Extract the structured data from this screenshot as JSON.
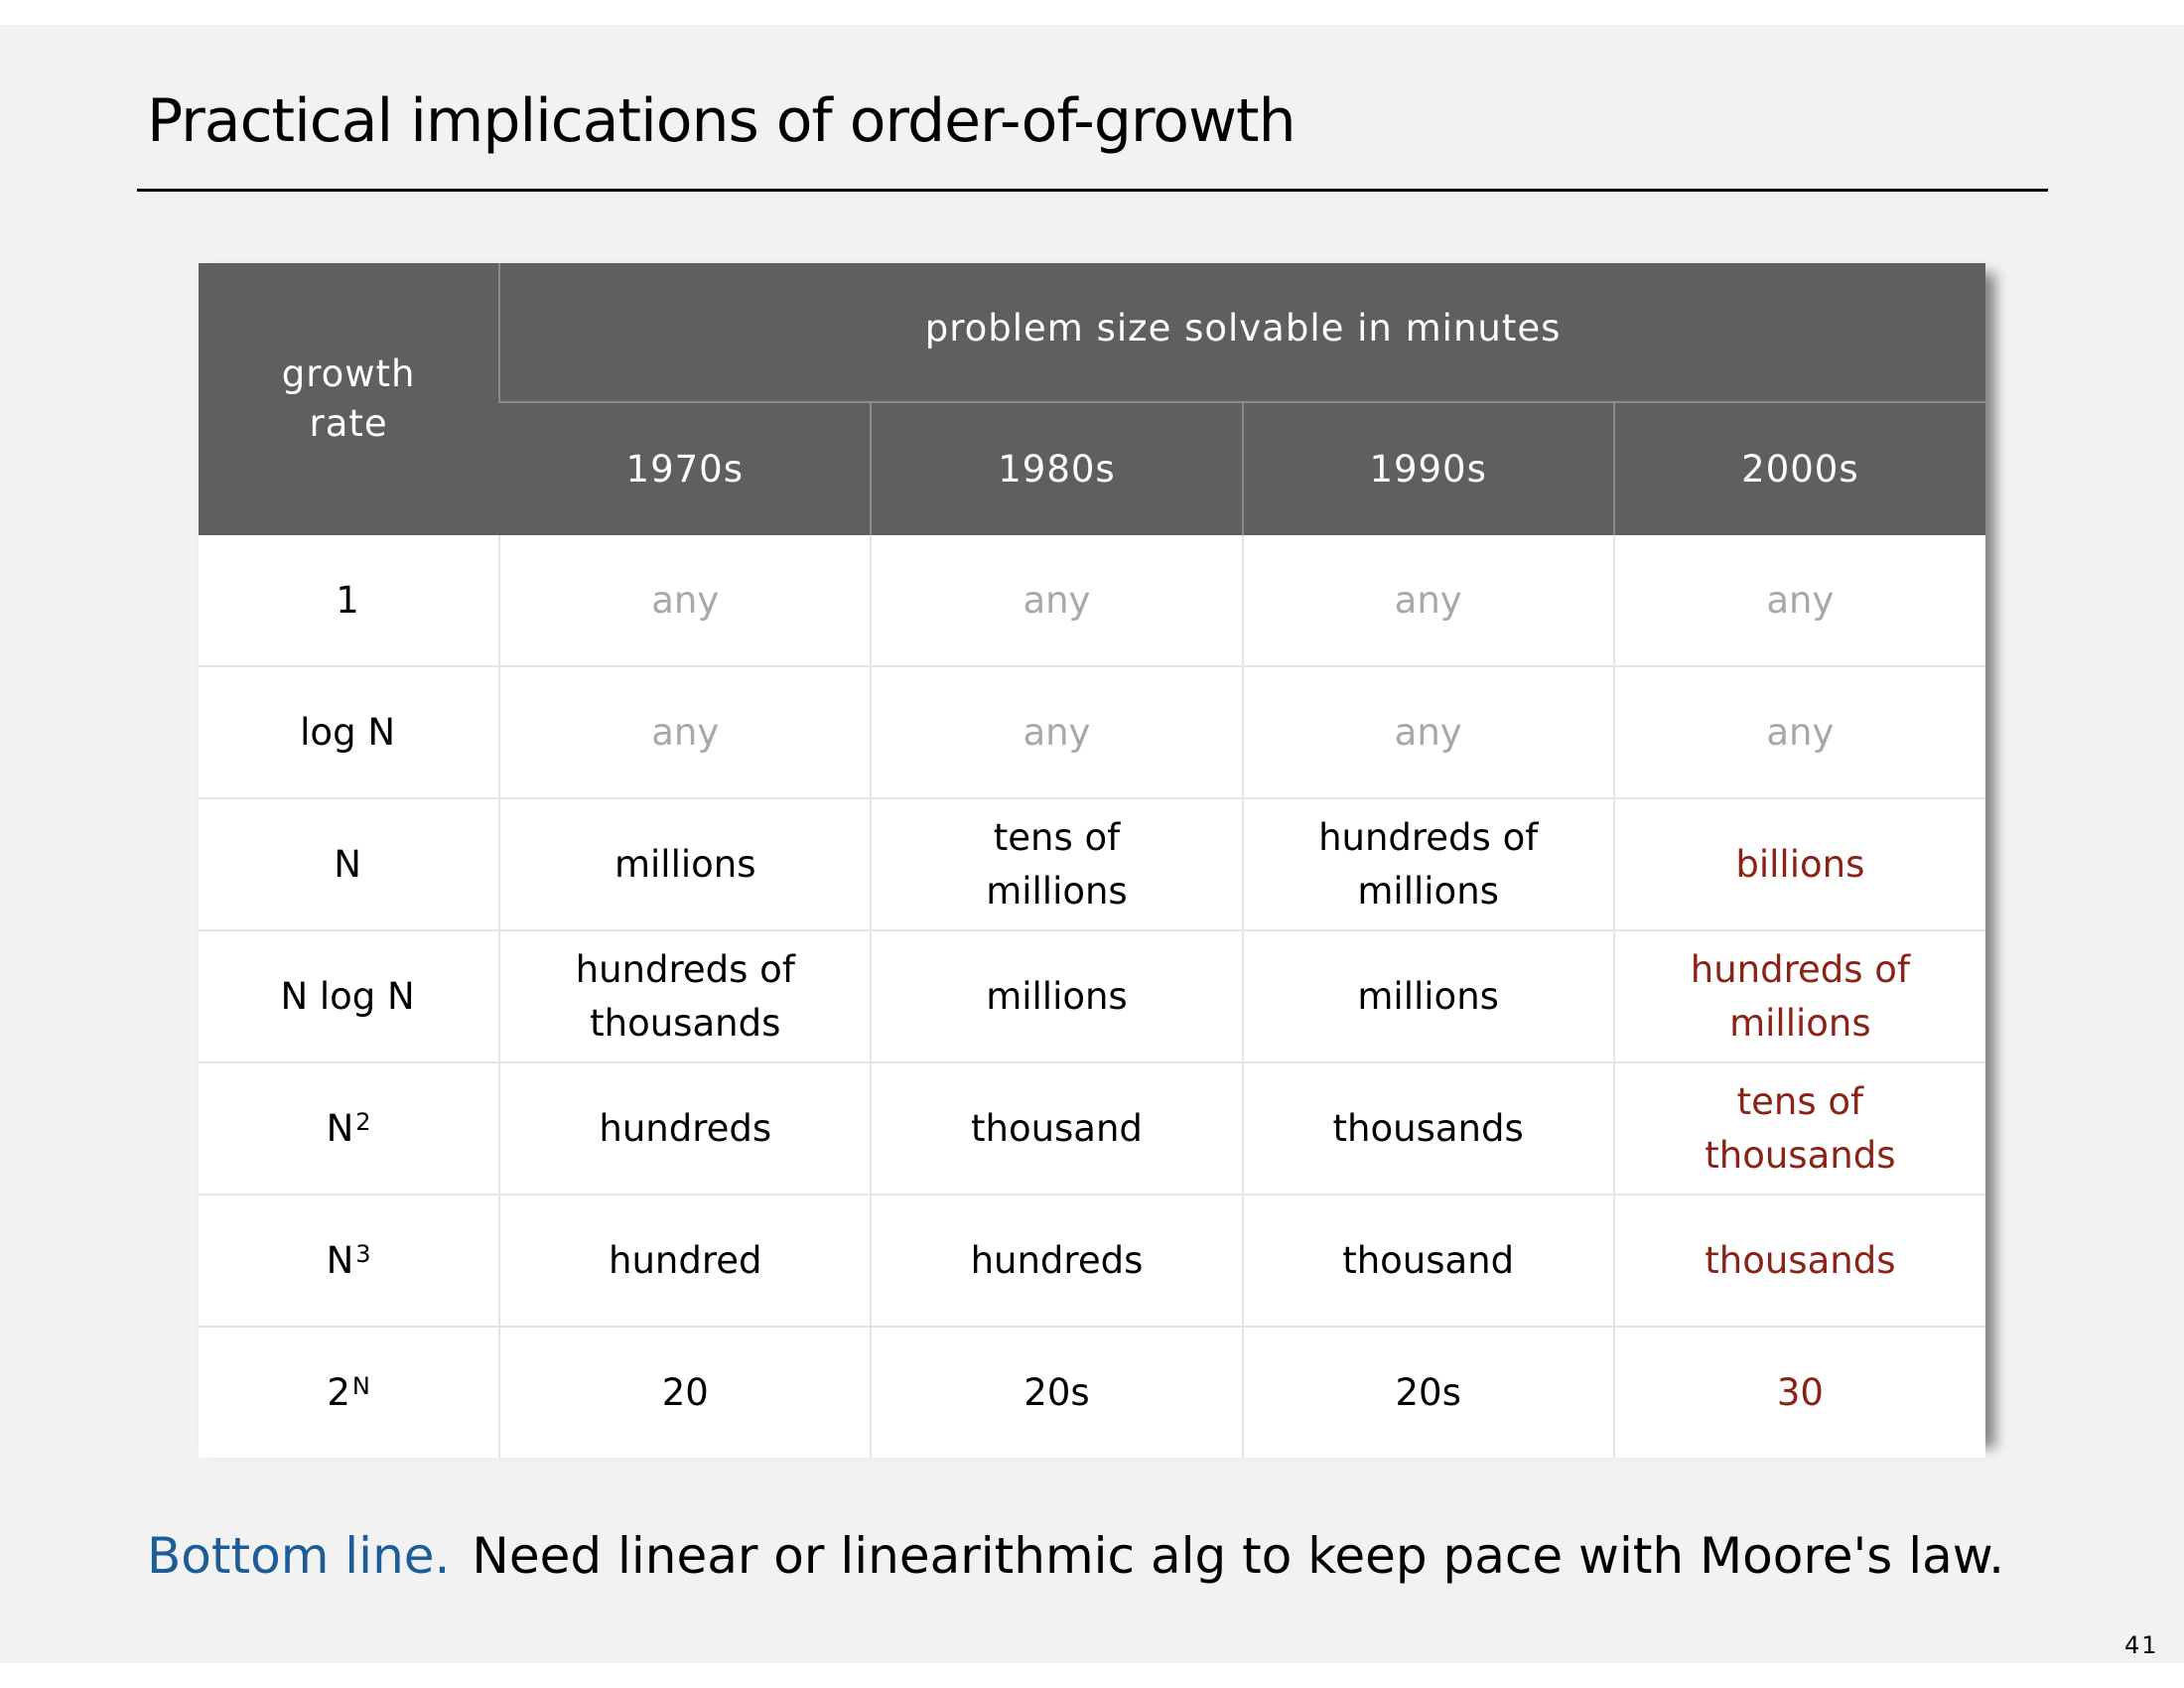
{
  "slide": {
    "title": "Practical implications of order-of-growth",
    "page_number": "41"
  },
  "table": {
    "corner_header": "growth rate",
    "group_header": "problem size solvable in minutes",
    "decades": [
      "1970s",
      "1980s",
      "1990s",
      "2000s"
    ],
    "rows": [
      {
        "rate": "1",
        "sup": "",
        "cells": [
          "any",
          "any",
          "any",
          "any"
        ]
      },
      {
        "rate": "log N",
        "sup": "",
        "cells": [
          "any",
          "any",
          "any",
          "any"
        ]
      },
      {
        "rate": "N",
        "sup": "",
        "cells": [
          "millions",
          "tens of millions",
          "hundreds of millions",
          "billions"
        ]
      },
      {
        "rate": "N log N",
        "sup": "",
        "cells": [
          "hundreds of thousands",
          "millions",
          "millions",
          "hundreds of millions"
        ]
      },
      {
        "rate": "N",
        "sup": "2",
        "cells": [
          "hundreds",
          "thousand",
          "thousands",
          "tens of thousands"
        ]
      },
      {
        "rate": "N",
        "sup": "3",
        "cells": [
          "hundred",
          "hundreds",
          "thousand",
          "thousands"
        ]
      },
      {
        "rate": "2",
        "sup": "N",
        "cells": [
          "20",
          "20s",
          "20s",
          "30"
        ]
      }
    ]
  },
  "bottom_line": {
    "lead": "Bottom line.",
    "text": "Need linear or linearithmic alg to keep pace with Moore's law."
  },
  "colors": {
    "header_bg": "#5f5f5f",
    "any_text": "#a8a8a8",
    "highlight_red": "#8b2216",
    "lead_blue": "#1b5c99"
  }
}
